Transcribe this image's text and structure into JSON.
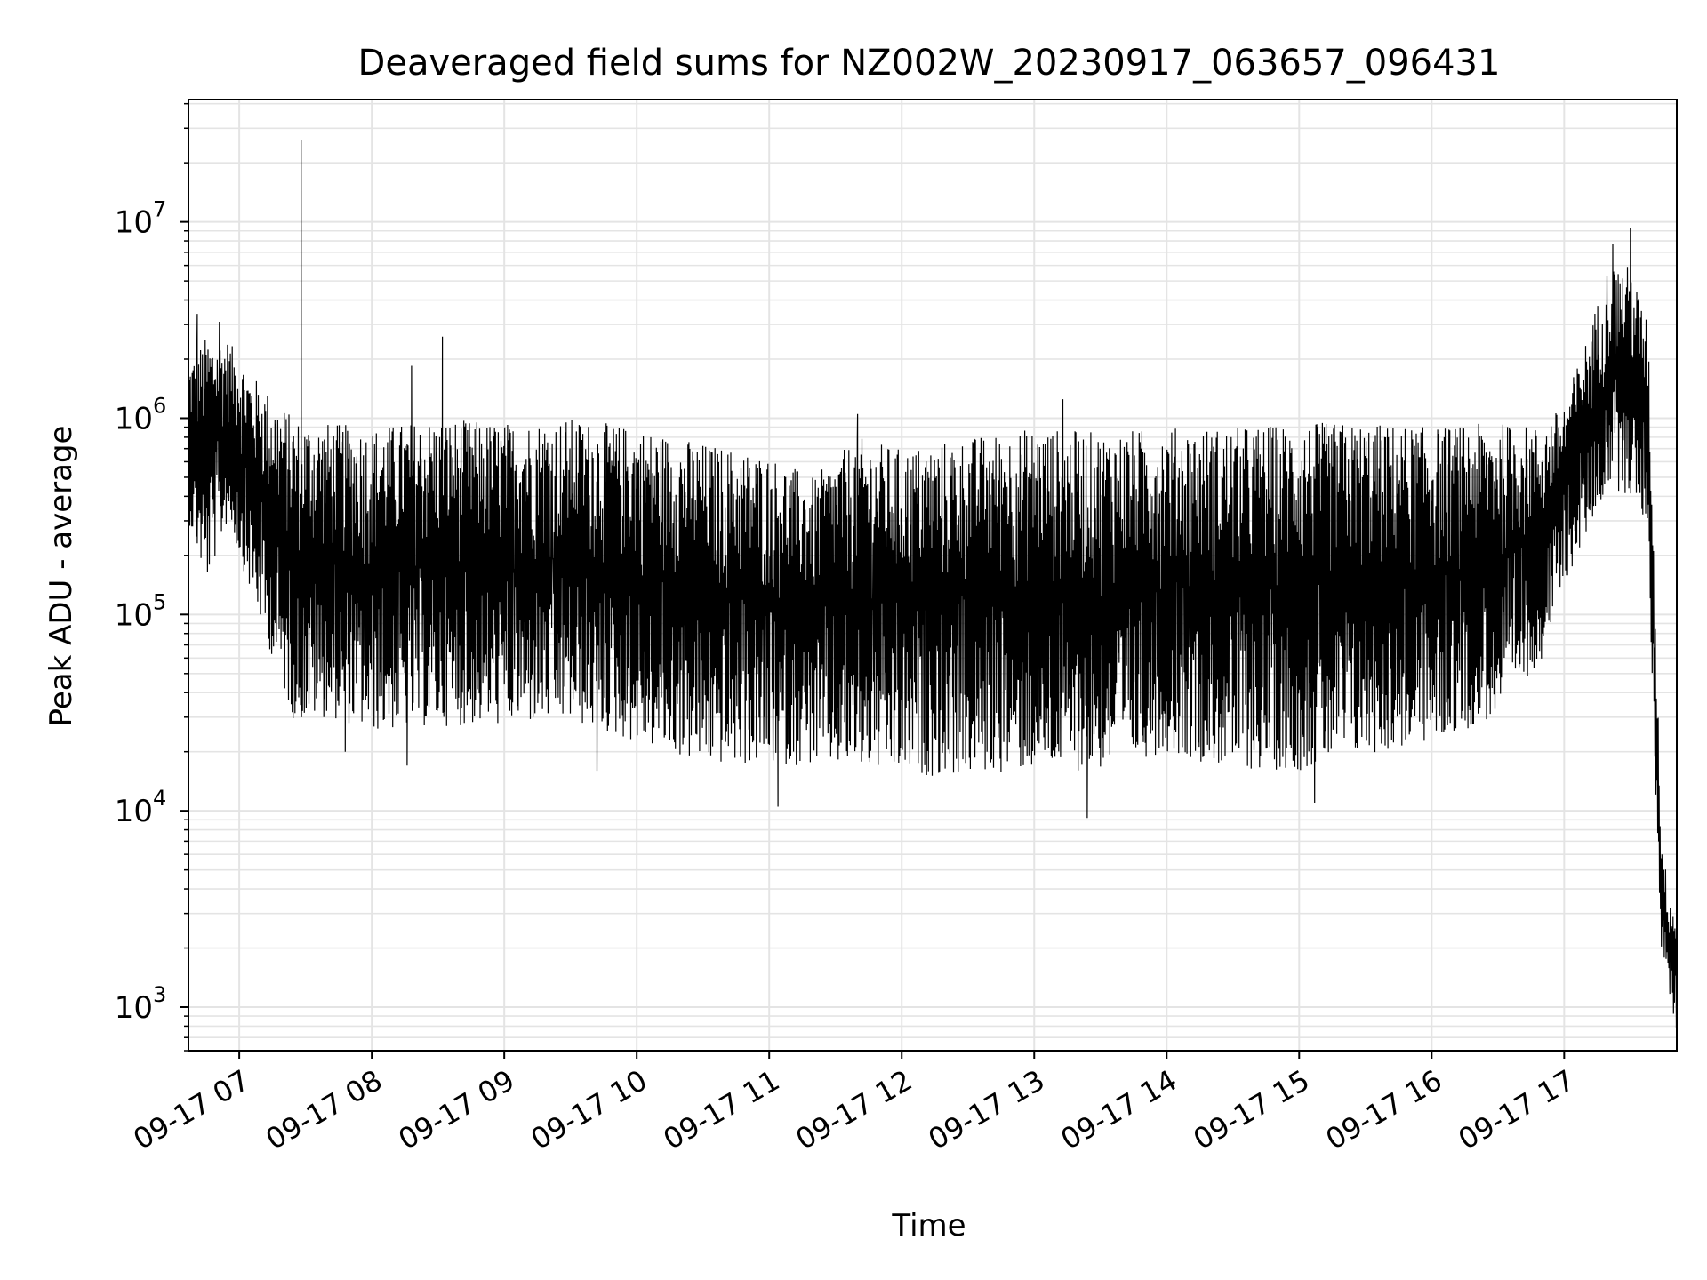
{
  "chart_data": {
    "type": "line",
    "title": "Deaveraged field sums for NZ002W_20230917_063657_096431",
    "xlabel": "Time",
    "ylabel": "Peak ADU - average",
    "yscale": "log",
    "ylim": [
      600,
      42000000
    ],
    "xlim": [
      "2023-09-17 06:37",
      "2023-09-17 17:51"
    ],
    "grid": true,
    "legend": "none",
    "x_ticks": [
      {
        "t": "2023-09-17 07:00",
        "label": "09-17 07"
      },
      {
        "t": "2023-09-17 08:00",
        "label": "09-17 08"
      },
      {
        "t": "2023-09-17 09:00",
        "label": "09-17 09"
      },
      {
        "t": "2023-09-17 10:00",
        "label": "09-17 10"
      },
      {
        "t": "2023-09-17 11:00",
        "label": "09-17 11"
      },
      {
        "t": "2023-09-17 12:00",
        "label": "09-17 12"
      },
      {
        "t": "2023-09-17 13:00",
        "label": "09-17 13"
      },
      {
        "t": "2023-09-17 14:00",
        "label": "09-17 14"
      },
      {
        "t": "2023-09-17 15:00",
        "label": "09-17 15"
      },
      {
        "t": "2023-09-17 16:00",
        "label": "09-17 16"
      },
      {
        "t": "2023-09-17 17:00",
        "label": "09-17 17"
      }
    ],
    "y_ticks": [
      {
        "value": 1000,
        "base": "10",
        "exp": "3"
      },
      {
        "value": 10000,
        "base": "10",
        "exp": "4"
      },
      {
        "value": 100000,
        "base": "10",
        "exp": "5"
      },
      {
        "value": 1000000,
        "base": "10",
        "exp": "6"
      },
      {
        "value": 10000000,
        "base": "10",
        "exp": "7"
      }
    ],
    "series": [
      {
        "color": "#000000",
        "envelope": [
          {
            "t": "2023-09-17 06:37",
            "high": 1900000,
            "low": 300000
          },
          {
            "t": "2023-09-17 06:45",
            "high": 2600000,
            "low": 140000
          },
          {
            "t": "2023-09-17 06:55",
            "high": 2500000,
            "low": 300000
          },
          {
            "t": "2023-09-17 07:05",
            "high": 1700000,
            "low": 130000
          },
          {
            "t": "2023-09-17 07:15",
            "high": 1300000,
            "low": 60000
          },
          {
            "t": "2023-09-17 07:25",
            "high": 1000000,
            "low": 28000
          },
          {
            "t": "2023-09-17 07:40",
            "high": 950000,
            "low": 30000
          },
          {
            "t": "2023-09-17 08:00",
            "high": 900000,
            "low": 25000
          },
          {
            "t": "2023-09-17 08:30",
            "high": 1000000,
            "low": 27000
          },
          {
            "t": "2023-09-17 09:00",
            "high": 950000,
            "low": 27000
          },
          {
            "t": "2023-09-17 09:30",
            "high": 1000000,
            "low": 28000
          },
          {
            "t": "2023-09-17 10:00",
            "high": 900000,
            "low": 22000
          },
          {
            "t": "2023-09-17 10:30",
            "high": 750000,
            "low": 17000
          },
          {
            "t": "2023-09-17 11:00",
            "high": 650000,
            "low": 17000
          },
          {
            "t": "2023-09-17 11:20",
            "high": 500000,
            "low": 17000
          },
          {
            "t": "2023-09-17 11:40",
            "high": 800000,
            "low": 16000
          },
          {
            "t": "2023-09-17 12:00",
            "high": 700000,
            "low": 15000
          },
          {
            "t": "2023-09-17 12:30",
            "high": 800000,
            "low": 15000
          },
          {
            "t": "2023-09-17 13:00",
            "high": 900000,
            "low": 16000
          },
          {
            "t": "2023-09-17 13:30",
            "high": 850000,
            "low": 16000
          },
          {
            "t": "2023-09-17 14:00",
            "high": 900000,
            "low": 20000
          },
          {
            "t": "2023-09-17 14:30",
            "high": 900000,
            "low": 16000
          },
          {
            "t": "2023-09-17 15:00",
            "high": 950000,
            "low": 16000
          },
          {
            "t": "2023-09-17 15:30",
            "high": 950000,
            "low": 19000
          },
          {
            "t": "2023-09-17 16:00",
            "high": 900000,
            "low": 22000
          },
          {
            "t": "2023-09-17 16:30",
            "high": 950000,
            "low": 30000
          },
          {
            "t": "2023-09-17 16:50",
            "high": 900000,
            "low": 60000
          },
          {
            "t": "2023-09-17 17:00",
            "high": 1200000,
            "low": 140000
          },
          {
            "t": "2023-09-17 17:10",
            "high": 2500000,
            "low": 250000
          },
          {
            "t": "2023-09-17 17:20",
            "high": 6000000,
            "low": 450000
          },
          {
            "t": "2023-09-17 17:30",
            "high": 6000000,
            "low": 400000
          },
          {
            "t": "2023-09-17 17:38",
            "high": 3000000,
            "low": 280000
          },
          {
            "t": "2023-09-17 17:41",
            "high": 150000,
            "low": 15000
          },
          {
            "t": "2023-09-17 17:44",
            "high": 8000,
            "low": 2000
          },
          {
            "t": "2023-09-17 17:47",
            "high": 4000,
            "low": 1300
          },
          {
            "t": "2023-09-17 17:51",
            "high": 3000,
            "low": 700
          }
        ],
        "spikes": [
          {
            "t": "2023-09-17 06:41",
            "value": 3400000
          },
          {
            "t": "2023-09-17 06:51",
            "value": 3100000
          },
          {
            "t": "2023-09-17 07:28",
            "value": 26000000
          },
          {
            "t": "2023-09-17 08:18",
            "value": 1850000
          },
          {
            "t": "2023-09-17 08:32",
            "value": 2600000
          },
          {
            "t": "2023-09-17 11:40",
            "value": 1050000
          },
          {
            "t": "2023-09-17 13:13",
            "value": 1250000
          },
          {
            "t": "2023-09-17 17:30",
            "value": 9300000
          },
          {
            "t": "2023-09-17 17:22",
            "value": 7700000
          }
        ],
        "dips": [
          {
            "t": "2023-09-17 07:48",
            "value": 20000
          },
          {
            "t": "2023-09-17 08:16",
            "value": 17000
          },
          {
            "t": "2023-09-17 09:42",
            "value": 16000
          },
          {
            "t": "2023-09-17 11:04",
            "value": 10500
          },
          {
            "t": "2023-09-17 13:24",
            "value": 9200
          },
          {
            "t": "2023-09-17 15:07",
            "value": 11000
          }
        ]
      }
    ]
  }
}
